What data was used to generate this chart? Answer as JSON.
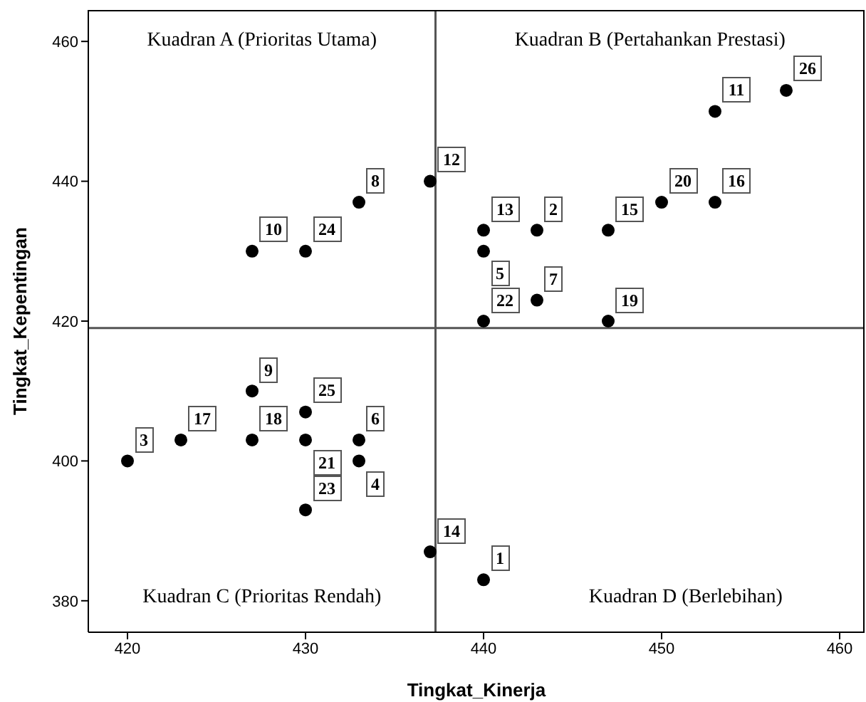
{
  "chart_data": {
    "type": "scatter",
    "xlabel": "Tingkat_Kinerja",
    "ylabel": "Tingkat_Kepentingan",
    "x": [
      440,
      443,
      420,
      433,
      440,
      433,
      443,
      433,
      427,
      427,
      453,
      437,
      440,
      437,
      447,
      453,
      423,
      427,
      447,
      450,
      430,
      440,
      430,
      430,
      430,
      457
    ],
    "values": [
      383,
      433,
      400,
      400,
      430,
      403,
      423,
      437,
      410,
      430,
      450,
      440,
      433,
      387,
      433,
      437,
      403,
      403,
      420,
      437,
      403,
      420,
      393,
      430,
      407,
      453
    ],
    "color": "#000000",
    "marker": "circle",
    "xlim": [
      417.8,
      461.4
    ],
    "ylim": [
      375.5,
      464.5
    ],
    "xticks": [
      420,
      430,
      440,
      450,
      460
    ],
    "yticks": [
      380,
      400,
      420,
      440,
      460
    ],
    "grid": false,
    "legend": false,
    "ref_lines": [
      {
        "axis": "x",
        "value": 437.3,
        "color": "#555555"
      },
      {
        "axis": "y",
        "value": 419.0,
        "color": "#555555"
      }
    ],
    "annotations": [
      "Kuadran A (Prioritas Utama)",
      "Kuadran B (Pertahankan Prestasi)",
      "Kuadran C (Prioritas Rendah)",
      "Kuadran D (Berlebihan)",
      {
        "text": "1",
        "x": 440,
        "y": 383
      },
      {
        "text": "2",
        "x": 443,
        "y": 433
      },
      {
        "text": "3",
        "x": 420,
        "y": 400
      },
      {
        "text": "4",
        "x": 433,
        "y": 400
      },
      {
        "text": "5",
        "x": 440,
        "y": 430
      },
      {
        "text": "6",
        "x": 433,
        "y": 403
      },
      {
        "text": "7",
        "x": 443,
        "y": 423
      },
      {
        "text": "8",
        "x": 433,
        "y": 437
      },
      {
        "text": "9",
        "x": 427,
        "y": 410
      },
      {
        "text": "10",
        "x": 427,
        "y": 430
      },
      {
        "text": "11",
        "x": 453,
        "y": 450
      },
      {
        "text": "12",
        "x": 437,
        "y": 440
      },
      {
        "text": "13",
        "x": 440,
        "y": 433
      },
      {
        "text": "14",
        "x": 437,
        "y": 387
      },
      {
        "text": "15",
        "x": 447,
        "y": 433
      },
      {
        "text": "16",
        "x": 453,
        "y": 437
      },
      {
        "text": "17",
        "x": 423,
        "y": 403
      },
      {
        "text": "18",
        "x": 427,
        "y": 403
      },
      {
        "text": "19",
        "x": 447,
        "y": 420
      },
      {
        "text": "20",
        "x": 450,
        "y": 437
      },
      {
        "text": "21",
        "x": 430,
        "y": 403
      },
      {
        "text": "22",
        "x": 440,
        "y": 420
      },
      {
        "text": "23",
        "x": 430,
        "y": 393
      },
      {
        "text": "24",
        "x": 430,
        "y": 430
      },
      {
        "text": "25",
        "x": 430,
        "y": 407
      },
      {
        "text": "26",
        "x": 457,
        "y": 453
      }
    ]
  }
}
